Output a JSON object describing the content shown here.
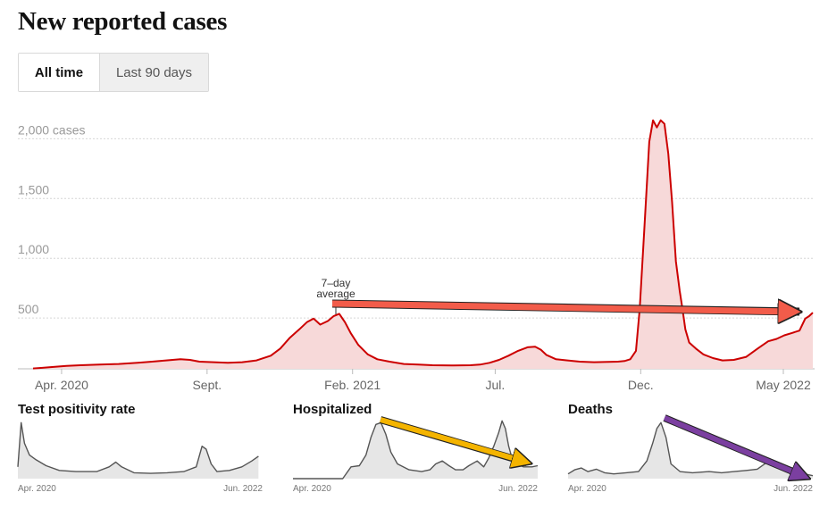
{
  "page": {
    "title": "New reported cases",
    "toggle": {
      "all_time": "All time",
      "last_90_days": "Last 90 days",
      "selected": "All time"
    }
  },
  "colors": {
    "case_line": "#cc0000",
    "case_fill": "#f7d9d9",
    "small_line": "#555555",
    "small_fill": "#e6e6e6",
    "red_arrow": "#f25c4a",
    "yellow_arrow": "#f4b400",
    "purple_arrow": "#7b3fa0"
  },
  "chart_data": [
    {
      "type": "area",
      "title": "New reported cases",
      "series_name": "7-day average",
      "annotation": [
        "7–day",
        "average"
      ],
      "ylim": [
        0,
        2100
      ],
      "y_ticks": [
        {
          "value": 500,
          "label": "500"
        },
        {
          "value": 1000,
          "label": "1,000"
        },
        {
          "value": 1500,
          "label": "1,500"
        },
        {
          "value": 2000,
          "label": "2,000 cases"
        }
      ],
      "x_range_days": [
        0,
        820
      ],
      "x_ticks": [
        {
          "day": 30,
          "label": "Apr. 2020"
        },
        {
          "day": 183,
          "label": "Sept."
        },
        {
          "day": 336,
          "label": "Feb. 2021"
        },
        {
          "day": 486,
          "label": "Jul."
        },
        {
          "day": 639,
          "label": "Dec."
        },
        {
          "day": 789,
          "label": "May 2022"
        }
      ],
      "points": [
        [
          0,
          3
        ],
        [
          10,
          8
        ],
        [
          20,
          15
        ],
        [
          35,
          25
        ],
        [
          50,
          30
        ],
        [
          70,
          35
        ],
        [
          90,
          40
        ],
        [
          110,
          50
        ],
        [
          125,
          60
        ],
        [
          140,
          70
        ],
        [
          155,
          80
        ],
        [
          165,
          75
        ],
        [
          175,
          60
        ],
        [
          190,
          55
        ],
        [
          205,
          50
        ],
        [
          220,
          55
        ],
        [
          235,
          70
        ],
        [
          250,
          110
        ],
        [
          260,
          170
        ],
        [
          270,
          260
        ],
        [
          280,
          330
        ],
        [
          288,
          390
        ],
        [
          295,
          420
        ],
        [
          302,
          370
        ],
        [
          310,
          400
        ],
        [
          316,
          440
        ],
        [
          322,
          460
        ],
        [
          328,
          390
        ],
        [
          334,
          300
        ],
        [
          342,
          200
        ],
        [
          352,
          120
        ],
        [
          362,
          80
        ],
        [
          375,
          60
        ],
        [
          390,
          40
        ],
        [
          405,
          35
        ],
        [
          420,
          30
        ],
        [
          440,
          28
        ],
        [
          460,
          30
        ],
        [
          470,
          35
        ],
        [
          480,
          50
        ],
        [
          490,
          75
        ],
        [
          500,
          110
        ],
        [
          510,
          150
        ],
        [
          520,
          180
        ],
        [
          528,
          185
        ],
        [
          534,
          160
        ],
        [
          540,
          115
        ],
        [
          550,
          80
        ],
        [
          562,
          70
        ],
        [
          575,
          60
        ],
        [
          590,
          55
        ],
        [
          605,
          58
        ],
        [
          615,
          60
        ],
        [
          622,
          65
        ],
        [
          628,
          80
        ],
        [
          634,
          150
        ],
        [
          638,
          500
        ],
        [
          643,
          1200
        ],
        [
          648,
          1900
        ],
        [
          652,
          2080
        ],
        [
          656,
          2020
        ],
        [
          660,
          2080
        ],
        [
          664,
          2050
        ],
        [
          668,
          1800
        ],
        [
          672,
          1400
        ],
        [
          676,
          900
        ],
        [
          680,
          650
        ],
        [
          683,
          500
        ],
        [
          686,
          330
        ],
        [
          690,
          220
        ],
        [
          697,
          170
        ],
        [
          705,
          120
        ],
        [
          715,
          90
        ],
        [
          725,
          70
        ],
        [
          737,
          75
        ],
        [
          750,
          100
        ],
        [
          762,
          170
        ],
        [
          773,
          230
        ],
        [
          782,
          250
        ],
        [
          790,
          280
        ],
        [
          798,
          300
        ],
        [
          806,
          320
        ],
        [
          812,
          420
        ],
        [
          816,
          440
        ],
        [
          820,
          470
        ]
      ]
    },
    {
      "type": "area",
      "title": "Test positivity rate",
      "x_labels": [
        "Apr. 2020",
        "Jun. 2022"
      ],
      "ylim": [
        0,
        100
      ],
      "points": [
        [
          0,
          20
        ],
        [
          4,
          95
        ],
        [
          8,
          60
        ],
        [
          14,
          40
        ],
        [
          22,
          32
        ],
        [
          34,
          22
        ],
        [
          50,
          14
        ],
        [
          70,
          12
        ],
        [
          95,
          12
        ],
        [
          110,
          20
        ],
        [
          118,
          28
        ],
        [
          125,
          20
        ],
        [
          140,
          10
        ],
        [
          160,
          9
        ],
        [
          180,
          10
        ],
        [
          200,
          12
        ],
        [
          215,
          20
        ],
        [
          222,
          55
        ],
        [
          227,
          50
        ],
        [
          233,
          25
        ],
        [
          240,
          12
        ],
        [
          255,
          14
        ],
        [
          270,
          20
        ],
        [
          282,
          30
        ],
        [
          290,
          38
        ]
      ]
    },
    {
      "type": "area",
      "title": "Hospitalized",
      "x_labels": [
        "Apr. 2020",
        "Jun. 2022"
      ],
      "ylim": [
        0,
        100
      ],
      "points": [
        [
          0,
          0
        ],
        [
          60,
          0
        ],
        [
          70,
          20
        ],
        [
          80,
          22
        ],
        [
          88,
          40
        ],
        [
          94,
          70
        ],
        [
          100,
          92
        ],
        [
          106,
          95
        ],
        [
          112,
          75
        ],
        [
          118,
          45
        ],
        [
          126,
          25
        ],
        [
          140,
          15
        ],
        [
          155,
          12
        ],
        [
          165,
          15
        ],
        [
          172,
          25
        ],
        [
          180,
          30
        ],
        [
          188,
          22
        ],
        [
          196,
          15
        ],
        [
          205,
          15
        ],
        [
          212,
          22
        ],
        [
          222,
          30
        ],
        [
          230,
          20
        ],
        [
          236,
          35
        ],
        [
          242,
          55
        ],
        [
          248,
          78
        ],
        [
          252,
          98
        ],
        [
          256,
          85
        ],
        [
          260,
          55
        ],
        [
          264,
          35
        ],
        [
          270,
          25
        ],
        [
          278,
          20
        ],
        [
          288,
          20
        ],
        [
          295,
          22
        ]
      ]
    },
    {
      "type": "area",
      "title": "Deaths",
      "x_labels": [
        "Apr. 2020",
        "Jun. 2022"
      ],
      "ylim": [
        0,
        100
      ],
      "points": [
        [
          0,
          8
        ],
        [
          8,
          15
        ],
        [
          16,
          18
        ],
        [
          24,
          12
        ],
        [
          34,
          16
        ],
        [
          44,
          10
        ],
        [
          55,
          8
        ],
        [
          70,
          10
        ],
        [
          85,
          12
        ],
        [
          95,
          30
        ],
        [
          102,
          60
        ],
        [
          107,
          85
        ],
        [
          112,
          95
        ],
        [
          118,
          70
        ],
        [
          124,
          25
        ],
        [
          135,
          12
        ],
        [
          150,
          10
        ],
        [
          170,
          12
        ],
        [
          185,
          10
        ],
        [
          200,
          12
        ],
        [
          215,
          14
        ],
        [
          228,
          16
        ],
        [
          238,
          26
        ],
        [
          246,
          24
        ],
        [
          255,
          20
        ],
        [
          270,
          15
        ],
        [
          285,
          8
        ],
        [
          295,
          5
        ]
      ]
    }
  ]
}
